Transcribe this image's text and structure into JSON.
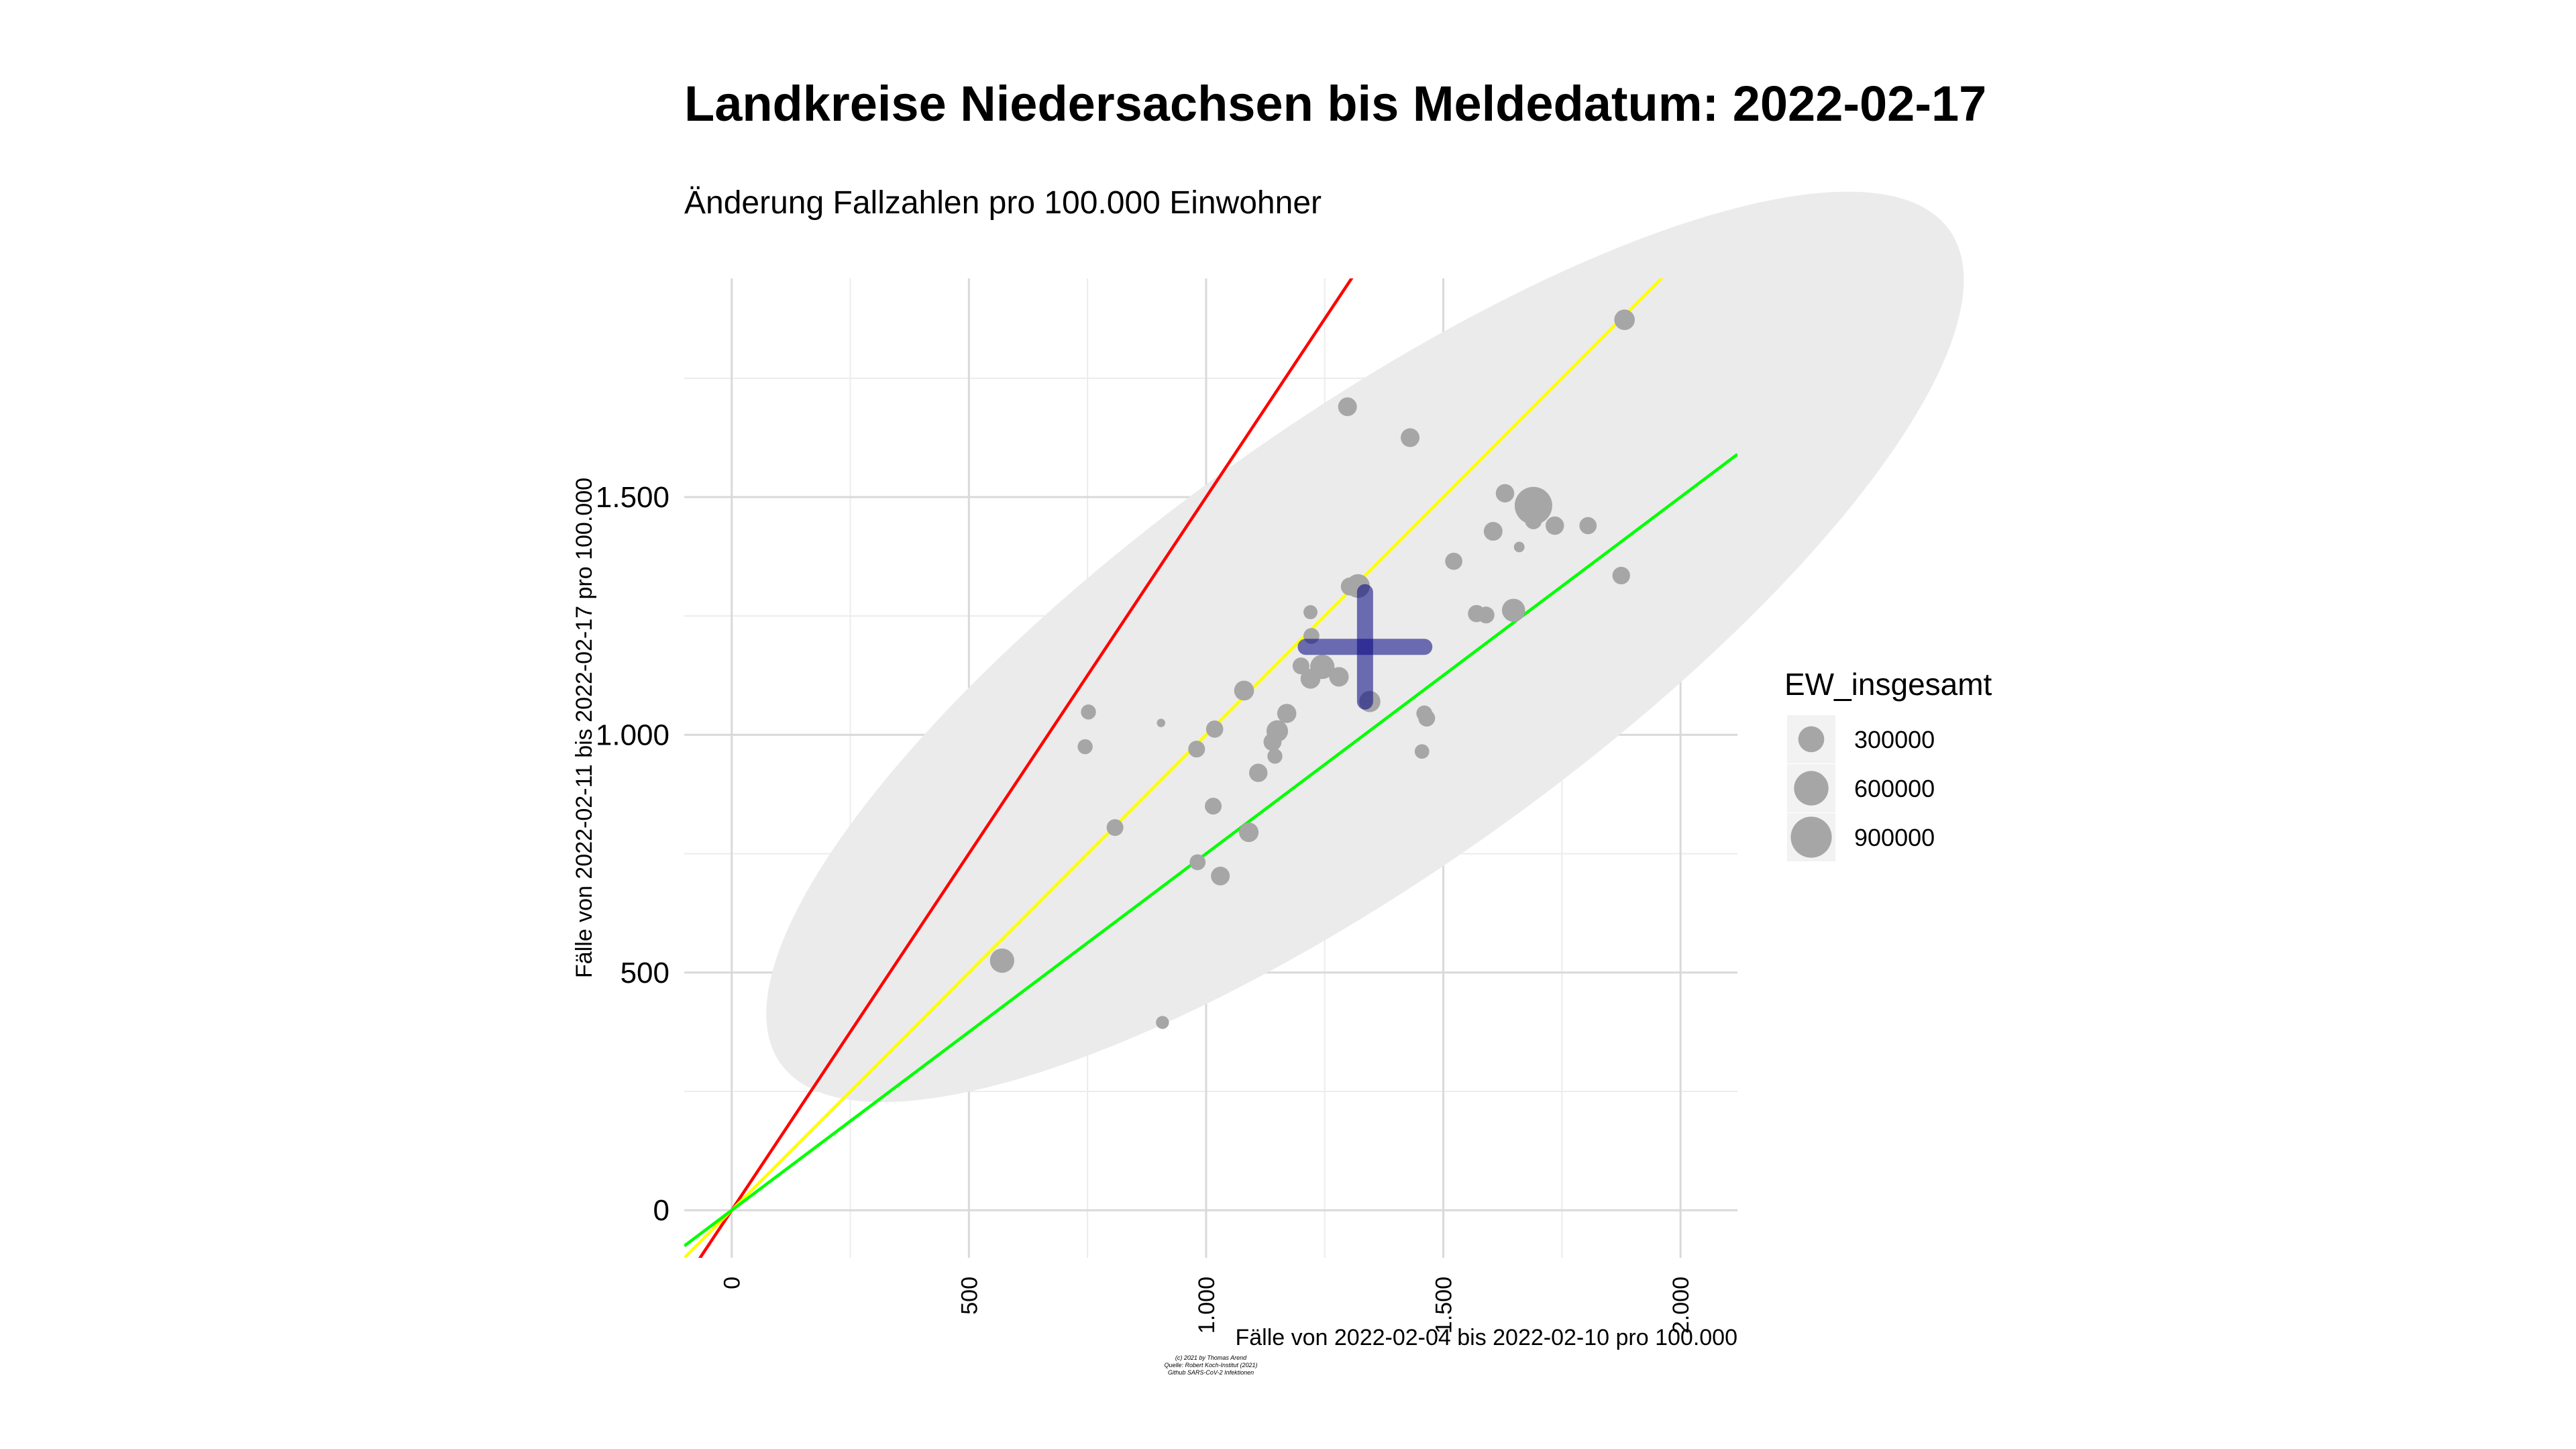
{
  "chart_data": {
    "type": "scatter",
    "title": "Landkreise Niedersachsen bis Meldedatum: 2022-02-17",
    "subtitle": "Änderung Fallzahlen pro 100.000 Einwohner",
    "xlabel": "Fälle von 2022-02-04 bis 2022-02-10 pro 100.000",
    "ylabel": "Fälle von 2022-02-11 bis 2022-02-17 pro 100.000",
    "xlim": [
      -100,
      2120
    ],
    "ylim": [
      -100,
      1960
    ],
    "x_ticks": [
      0,
      500,
      1000,
      1500,
      2000
    ],
    "x_tick_labels": [
      "0",
      "500",
      "1.000",
      "1.500",
      "2.000"
    ],
    "y_ticks": [
      0,
      500,
      1000,
      1500
    ],
    "y_tick_labels": [
      "0",
      "500",
      "1.000",
      "1.500"
    ],
    "grid": true,
    "legend": {
      "title": "EW_insgesamt",
      "placement": "right",
      "entries": [
        {
          "label": "300000",
          "value": 300000
        },
        {
          "label": "600000",
          "value": 600000
        },
        {
          "label": "900000",
          "value": 900000
        }
      ]
    },
    "reference_lines": [
      {
        "slope": 1.5,
        "color": "#ff0000"
      },
      {
        "slope": 1.0,
        "color": "#ffff00"
      },
      {
        "slope": 0.75,
        "color": "#00ff00"
      }
    ],
    "ellipse": {
      "center": [
        1335,
        1185
      ],
      "fill": "#ebebeb"
    },
    "mean_cross": {
      "x": 1335,
      "y": 1185,
      "x_range": [
        1210,
        1460
      ],
      "y_range": [
        1070,
        1300
      ],
      "color": "#000080"
    },
    "point_color": "#a6a6a6",
    "points": [
      {
        "x": 570,
        "y": 525,
        "ew": 420000
      },
      {
        "x": 745,
        "y": 975,
        "ew": 160000
      },
      {
        "x": 752,
        "y": 1048,
        "ew": 160000
      },
      {
        "x": 808,
        "y": 805,
        "ew": 200000
      },
      {
        "x": 905,
        "y": 1025,
        "ew": 50000
      },
      {
        "x": 908,
        "y": 395,
        "ew": 120000
      },
      {
        "x": 980,
        "y": 970,
        "ew": 200000
      },
      {
        "x": 982,
        "y": 732,
        "ew": 180000
      },
      {
        "x": 1015,
        "y": 850,
        "ew": 200000
      },
      {
        "x": 1018,
        "y": 1012,
        "ew": 210000
      },
      {
        "x": 1030,
        "y": 703,
        "ew": 250000
      },
      {
        "x": 1080,
        "y": 1093,
        "ew": 280000
      },
      {
        "x": 1090,
        "y": 795,
        "ew": 270000
      },
      {
        "x": 1110,
        "y": 920,
        "ew": 240000
      },
      {
        "x": 1140,
        "y": 985,
        "ew": 230000
      },
      {
        "x": 1145,
        "y": 955,
        "ew": 160000
      },
      {
        "x": 1150,
        "y": 1008,
        "ew": 330000
      },
      {
        "x": 1170,
        "y": 1045,
        "ew": 260000
      },
      {
        "x": 1200,
        "y": 1145,
        "ew": 200000
      },
      {
        "x": 1220,
        "y": 1258,
        "ew": 140000
      },
      {
        "x": 1222,
        "y": 1208,
        "ew": 180000
      },
      {
        "x": 1220,
        "y": 1118,
        "ew": 280000
      },
      {
        "x": 1245,
        "y": 1143,
        "ew": 420000
      },
      {
        "x": 1280,
        "y": 1122,
        "ew": 270000
      },
      {
        "x": 1298,
        "y": 1690,
        "ew": 250000
      },
      {
        "x": 1303,
        "y": 1312,
        "ew": 230000
      },
      {
        "x": 1320,
        "y": 1313,
        "ew": 400000
      },
      {
        "x": 1345,
        "y": 1070,
        "ew": 320000
      },
      {
        "x": 1430,
        "y": 1625,
        "ew": 250000
      },
      {
        "x": 1455,
        "y": 965,
        "ew": 150000
      },
      {
        "x": 1460,
        "y": 1045,
        "ew": 180000
      },
      {
        "x": 1465,
        "y": 1035,
        "ew": 200000
      },
      {
        "x": 1522,
        "y": 1365,
        "ew": 210000
      },
      {
        "x": 1570,
        "y": 1255,
        "ew": 210000
      },
      {
        "x": 1590,
        "y": 1252,
        "ew": 200000
      },
      {
        "x": 1605,
        "y": 1428,
        "ew": 250000
      },
      {
        "x": 1630,
        "y": 1508,
        "ew": 240000
      },
      {
        "x": 1648,
        "y": 1262,
        "ew": 380000
      },
      {
        "x": 1660,
        "y": 1395,
        "ew": 80000
      },
      {
        "x": 1690,
        "y": 1482,
        "ew": 1000000
      },
      {
        "x": 1690,
        "y": 1450,
        "ew": 200000
      },
      {
        "x": 1735,
        "y": 1440,
        "ew": 240000
      },
      {
        "x": 1805,
        "y": 1440,
        "ew": 210000
      },
      {
        "x": 1875,
        "y": 1335,
        "ew": 220000
      },
      {
        "x": 1882,
        "y": 1873,
        "ew": 300000
      }
    ]
  }
}
